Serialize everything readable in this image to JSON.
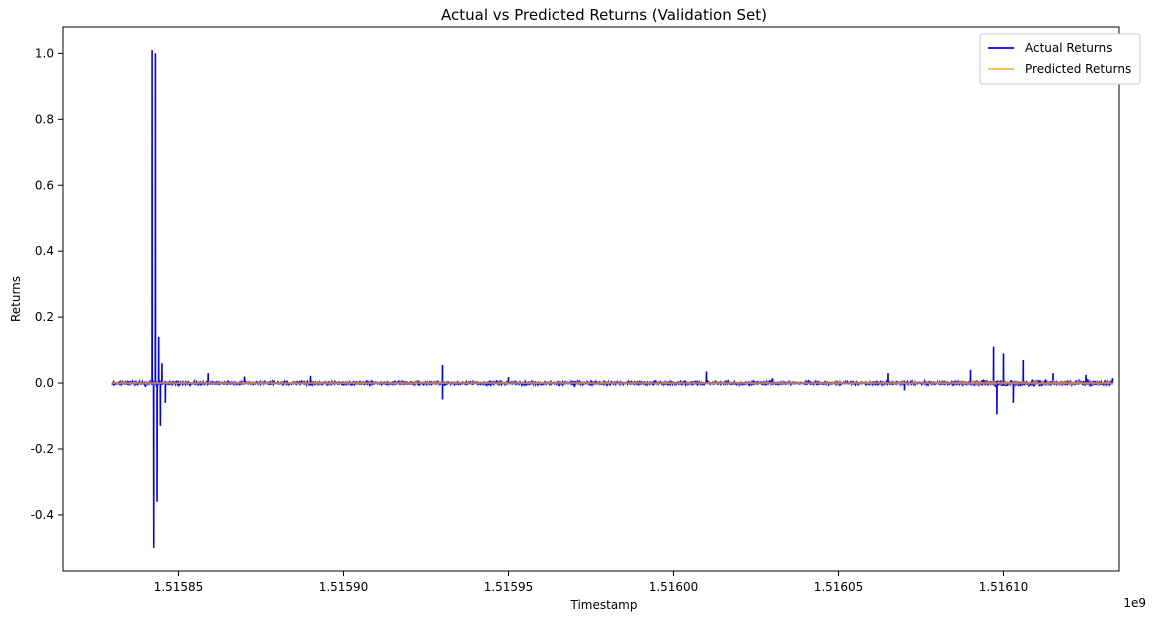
{
  "chart_data": {
    "type": "line",
    "title": "Actual vs Predicted Returns (Validation Set)",
    "xlabel": "Timestamp",
    "ylabel": "Returns",
    "x_offset_label": "1e9",
    "xlim": [
      1.515815,
      1.516135
    ],
    "ylim": [
      -0.57,
      1.08
    ],
    "x_ticks": [
      1.51585,
      1.5159,
      1.51595,
      1.516,
      1.51605,
      1.5161
    ],
    "x_tick_labels": [
      "1.51585",
      "1.51590",
      "1.51595",
      "1.51600",
      "1.51605",
      "1.51610"
    ],
    "y_ticks": [
      -0.4,
      -0.2,
      0.0,
      0.2,
      0.4,
      0.6,
      0.8,
      1.0
    ],
    "y_tick_labels": [
      "-0.4",
      "-0.2",
      "0.0",
      "0.2",
      "0.4",
      "0.6",
      "0.8",
      "1.0"
    ],
    "grid": false,
    "legend_position": "top-right",
    "x_range": [
      1.51583,
      1.516133
    ],
    "series": [
      {
        "name": "Actual Returns",
        "color": "#0000ff",
        "points": [
          [
            1.51583,
            0.0
          ],
          [
            1.515835,
            0.006
          ],
          [
            1.51584,
            -0.012
          ],
          [
            1.515842,
            1.01
          ],
          [
            1.5158425,
            -0.5
          ],
          [
            1.515843,
            1.0
          ],
          [
            1.5158435,
            -0.36
          ],
          [
            1.515844,
            0.14
          ],
          [
            1.5158445,
            -0.13
          ],
          [
            1.515845,
            0.06
          ],
          [
            1.515846,
            -0.06
          ],
          [
            1.51585,
            0.0
          ],
          [
            1.515859,
            0.03
          ],
          [
            1.51587,
            0.02
          ],
          [
            1.51589,
            0.022
          ],
          [
            1.51593,
            0.055
          ],
          [
            1.51593,
            -0.05
          ],
          [
            1.51595,
            0.018
          ],
          [
            1.51597,
            -0.012
          ],
          [
            1.51601,
            0.035
          ],
          [
            1.51603,
            0.015
          ],
          [
            1.516065,
            0.03
          ],
          [
            1.51607,
            -0.022
          ],
          [
            1.51609,
            0.04
          ],
          [
            1.516097,
            0.11
          ],
          [
            1.516098,
            -0.095
          ],
          [
            1.5161,
            0.09
          ],
          [
            1.516103,
            -0.06
          ],
          [
            1.516106,
            0.07
          ],
          [
            1.516115,
            0.03
          ],
          [
            1.516125,
            0.025
          ],
          [
            1.516133,
            0.015
          ]
        ]
      },
      {
        "name": "Predicted Returns",
        "color": "#ffb84d",
        "points": [
          [
            1.51583,
            0.0
          ],
          [
            1.51585,
            0.002
          ],
          [
            1.5159,
            -0.002
          ],
          [
            1.51595,
            0.001
          ],
          [
            1.516,
            0.0
          ],
          [
            1.51605,
            0.001
          ],
          [
            1.5161,
            0.004
          ],
          [
            1.516133,
            0.002
          ]
        ]
      }
    ]
  }
}
